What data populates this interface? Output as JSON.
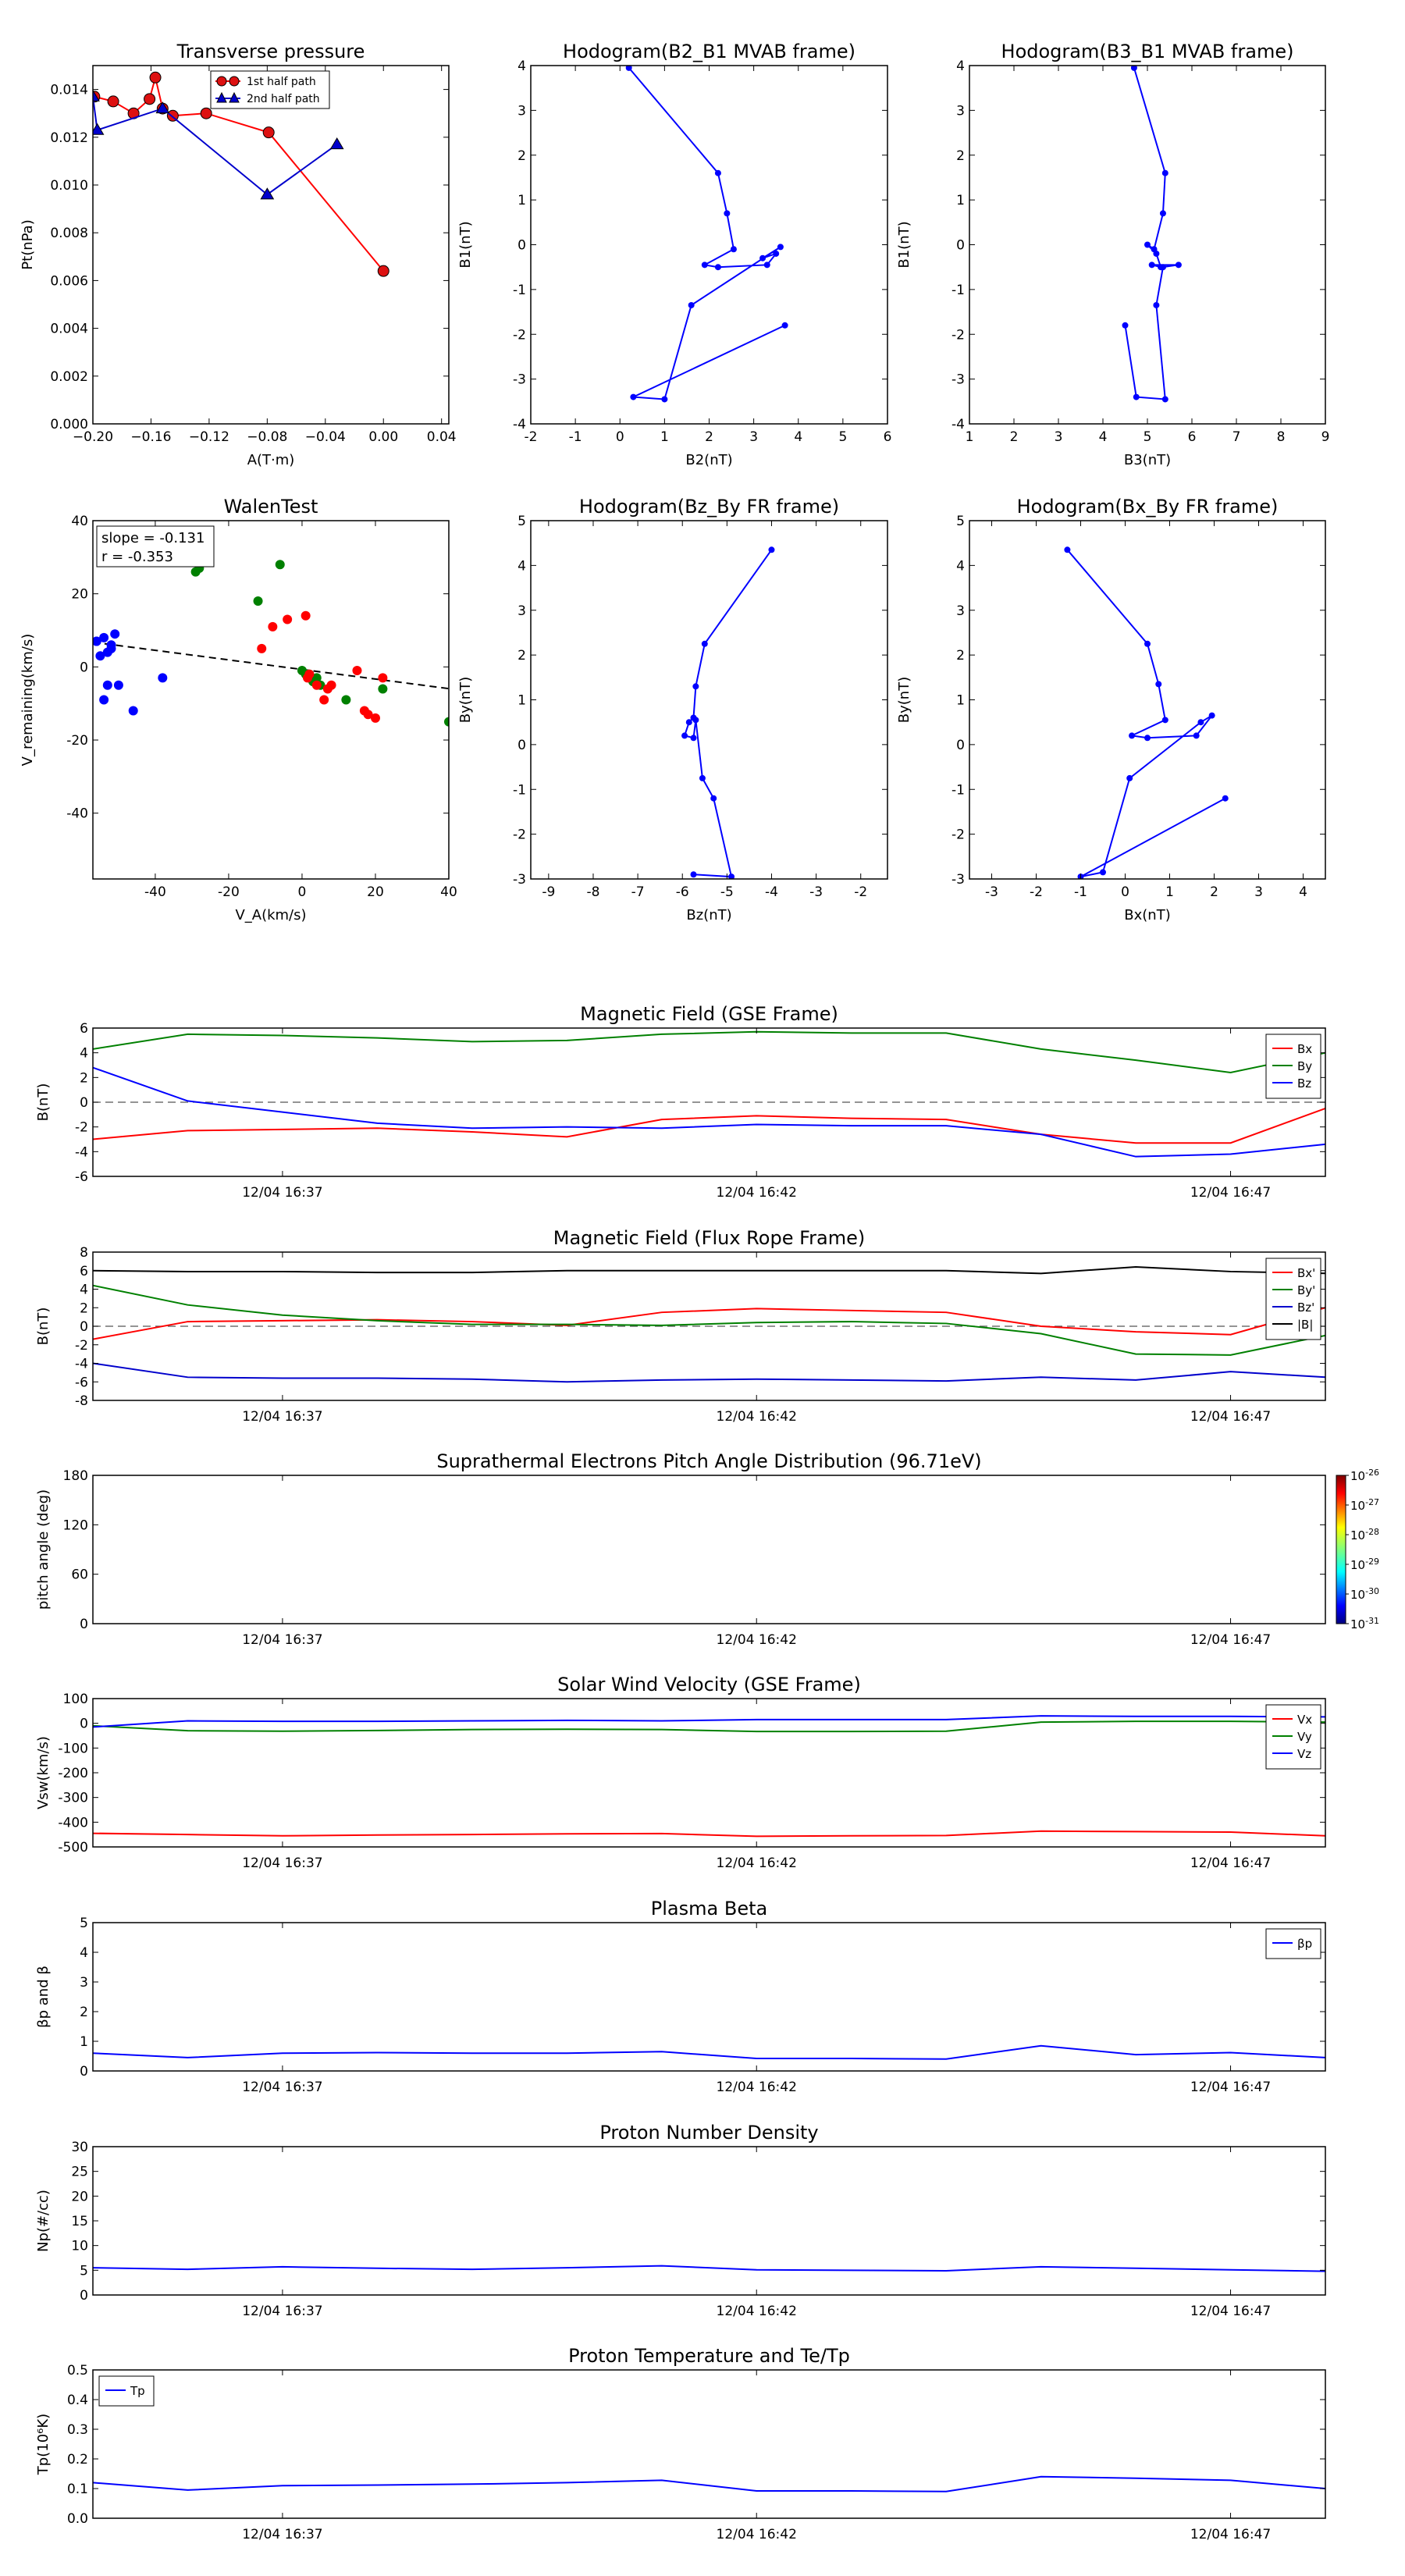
{
  "chart_data": [
    {
      "id": "tp",
      "type": "scatter",
      "title": "Transverse pressure",
      "xlabel": "A(T·m)",
      "ylabel": "Pt(nPa)",
      "xlim": [
        -0.2,
        0.045
      ],
      "ylim": [
        0,
        0.015
      ],
      "xticks": [
        -0.2,
        -0.16,
        -0.12,
        -0.08,
        -0.04,
        0.0,
        0.04
      ],
      "xtick_labels": [
        "−0.20",
        "−0.16",
        "−0.12",
        "−0.08",
        "−0.04",
        "0.00",
        "0.04"
      ],
      "yticks": [
        0,
        0.002,
        0.004,
        0.006,
        0.008,
        0.01,
        0.012,
        0.014
      ],
      "ytick_labels": [
        "0.000",
        "0.002",
        "0.004",
        "0.006",
        "0.008",
        "0.010",
        "0.012",
        "0.014"
      ],
      "legend_position": "top-center",
      "series": [
        {
          "name": "1st half path",
          "color": "#ff0000",
          "marker": "circle",
          "x": [
            -0.199,
            -0.186,
            -0.172,
            -0.161,
            -0.157,
            -0.152,
            -0.145,
            -0.122,
            -0.079,
            0.0
          ],
          "y": [
            0.0137,
            0.0135,
            0.013,
            0.0136,
            0.0145,
            0.0132,
            0.0129,
            0.013,
            0.0122,
            0.0064
          ]
        },
        {
          "name": "2nd half path",
          "color": "#0000cc",
          "marker": "triangle",
          "x": [
            -0.2,
            -0.197,
            -0.152,
            -0.08,
            -0.032
          ],
          "y": [
            0.0137,
            0.0123,
            0.0132,
            0.0096,
            0.0117
          ]
        }
      ]
    },
    {
      "id": "h1",
      "type": "line",
      "title": "Hodogram(B2_B1 MVAB frame)",
      "xlabel": "B2(nT)",
      "ylabel": "B1(nT)",
      "xlim": [
        -2,
        6
      ],
      "ylim": [
        -4,
        4
      ],
      "xticks": [
        -2,
        -1,
        0,
        1,
        2,
        3,
        4,
        5,
        6
      ],
      "yticks": [
        -4,
        -3,
        -2,
        -1,
        0,
        1,
        2,
        3,
        4
      ],
      "series": [
        {
          "color": "#0000ff",
          "x": [
            0.2,
            2.2,
            2.4,
            2.55,
            1.9,
            2.2,
            3.3,
            3.5,
            3.2,
            3.6,
            1.6,
            1.0,
            0.3,
            3.7
          ],
          "y": [
            3.95,
            1.6,
            0.7,
            -0.1,
            -0.45,
            -0.5,
            -0.45,
            -0.2,
            -0.3,
            -0.05,
            -1.35,
            -3.45,
            -3.4,
            -1.8
          ]
        }
      ]
    },
    {
      "id": "h2",
      "type": "line",
      "title": "Hodogram(B3_B1 MVAB frame)",
      "xlabel": "B3(nT)",
      "ylabel": "B1(nT)",
      "xlim": [
        1,
        9
      ],
      "ylim": [
        -4,
        4
      ],
      "xticks": [
        1,
        2,
        3,
        4,
        5,
        6,
        7,
        8,
        9
      ],
      "yticks": [
        -4,
        -3,
        -2,
        -1,
        0,
        1,
        2,
        3,
        4
      ],
      "series": [
        {
          "color": "#0000ff",
          "x": [
            4.7,
            5.4,
            5.35,
            5.15,
            5.0,
            5.2,
            5.3,
            5.1,
            5.7,
            5.35,
            5.2,
            5.4,
            4.75,
            4.5
          ],
          "y": [
            3.95,
            1.6,
            0.7,
            -0.1,
            0.0,
            -0.2,
            -0.5,
            -0.45,
            -0.45,
            -0.5,
            -1.35,
            -3.45,
            -3.4,
            -1.8
          ]
        }
      ]
    },
    {
      "id": "wt",
      "type": "scatter",
      "title": "WalenTest",
      "xlabel": "V_A(km/s)",
      "ylabel": "V_remaining(km/s)",
      "xlim": [
        -57,
        40
      ],
      "ylim": [
        -58,
        40
      ],
      "xticks": [
        -40,
        -20,
        0,
        20,
        40
      ],
      "yticks": [
        -40,
        -20,
        0,
        20,
        40
      ],
      "annotation_lines": [
        "slope = -0.131",
        "r = -0.353"
      ],
      "fit": {
        "slope": -0.131,
        "intercept": -0.7
      },
      "series": [
        {
          "color": "#0000ff",
          "x": [
            -56,
            -55,
            -54,
            -53,
            -52,
            -51,
            -53,
            -50,
            -52,
            -46,
            -38,
            -56,
            -54
          ],
          "y": [
            7,
            3,
            8,
            4,
            6,
            9,
            -5,
            -5,
            5,
            -12,
            -3,
            7,
            -9
          ]
        },
        {
          "color": "#008000",
          "x": [
            -29,
            -28,
            -6,
            -12,
            0,
            1,
            2,
            3,
            4,
            5,
            12,
            22,
            40
          ],
          "y": [
            26,
            27,
            28,
            18,
            -1,
            -2,
            -2,
            -4,
            -3,
            -5,
            -9,
            -6,
            -15
          ]
        },
        {
          "color": "#ff0000",
          "x": [
            -11,
            -8,
            -4,
            1,
            1.5,
            2,
            4,
            6,
            7,
            8,
            15,
            17,
            18,
            20,
            22
          ],
          "y": [
            5,
            11,
            13,
            14,
            -3,
            -2,
            -5,
            -9,
            -6,
            -5,
            -1,
            -12,
            -13,
            -14,
            -3
          ]
        }
      ]
    },
    {
      "id": "h3",
      "type": "line",
      "title": "Hodogram(Bz_By FR frame)",
      "xlabel": "Bz(nT)",
      "ylabel": "By(nT)",
      "xlim": [
        -9.4,
        -1.4
      ],
      "ylim": [
        -3,
        5
      ],
      "xticks": [
        -9,
        -8,
        -7,
        -6,
        -5,
        -4,
        -3,
        -2
      ],
      "yticks": [
        -3,
        -2,
        -1,
        0,
        1,
        2,
        3,
        4,
        5
      ],
      "series": [
        {
          "color": "#0000ff",
          "x": [
            -4.0,
            -5.5,
            -5.7,
            -5.75,
            -5.85,
            -5.95,
            -5.75,
            -5.7,
            -5.55,
            -5.3,
            -4.9,
            -5.75
          ],
          "y": [
            4.35,
            2.25,
            1.3,
            0.6,
            0.5,
            0.2,
            0.15,
            0.55,
            -0.75,
            -1.2,
            -2.95,
            -2.9
          ]
        }
      ]
    },
    {
      "id": "h4",
      "type": "line",
      "title": "Hodogram(Bx_By FR frame)",
      "xlabel": "Bx(nT)",
      "ylabel": "By(nT)",
      "xlim": [
        -3.5,
        4.5
      ],
      "ylim": [
        -3,
        5
      ],
      "xticks": [
        -3,
        -2,
        -1,
        0,
        1,
        2,
        3,
        4
      ],
      "yticks": [
        -3,
        -2,
        -1,
        0,
        1,
        2,
        3,
        4,
        5
      ],
      "series": [
        {
          "color": "#0000ff",
          "x": [
            -1.3,
            0.5,
            0.75,
            0.9,
            0.15,
            0.5,
            1.6,
            1.95,
            1.7,
            0.1,
            -0.5,
            -1.0,
            2.25
          ],
          "y": [
            4.35,
            2.25,
            1.35,
            0.55,
            0.2,
            0.15,
            0.2,
            0.65,
            0.5,
            -0.75,
            -2.85,
            -2.95,
            -1.2
          ]
        }
      ]
    },
    {
      "id": "mag_gse",
      "type": "line",
      "title": "Magnetic Field (GSE Frame)",
      "ylabel": "B(nT)",
      "ylim": [
        -6,
        6
      ],
      "yticks": [
        -6,
        -4,
        -2,
        0,
        2,
        4,
        6
      ],
      "dashed_zero": true,
      "x": [
        0,
        1,
        2,
        3,
        4,
        5,
        6,
        7,
        8,
        9,
        10,
        11,
        12,
        13
      ],
      "series": [
        {
          "name": "Bx",
          "color": "#ff0000",
          "values": [
            -3.0,
            -2.3,
            -2.2,
            -2.1,
            -2.4,
            -2.8,
            -1.4,
            -1.1,
            -1.3,
            -1.4,
            -2.6,
            -3.3,
            -3.3,
            -0.5
          ]
        },
        {
          "name": "By",
          "color": "#008000",
          "values": [
            4.3,
            5.5,
            5.4,
            5.2,
            4.9,
            5.0,
            5.5,
            5.7,
            5.6,
            5.6,
            4.3,
            3.4,
            2.4,
            4.0
          ]
        },
        {
          "name": "Bz",
          "color": "#0000ff",
          "values": [
            2.8,
            0.1,
            -0.8,
            -1.7,
            -2.1,
            -2.0,
            -2.1,
            -1.8,
            -1.9,
            -1.9,
            -2.6,
            -4.4,
            -4.2,
            -3.4
          ]
        }
      ],
      "legend_position": "top-right"
    },
    {
      "id": "mag_fr",
      "type": "line",
      "title": "Magnetic Field (Flux Rope Frame)",
      "ylabel": "B(nT)",
      "ylim": [
        -8,
        8
      ],
      "yticks": [
        -8,
        -6,
        -4,
        -2,
        0,
        2,
        4,
        6,
        8
      ],
      "dashed_zero": true,
      "x": [
        0,
        1,
        2,
        3,
        4,
        5,
        6,
        7,
        8,
        9,
        10,
        11,
        12,
        13
      ],
      "series": [
        {
          "name": "Bx'",
          "color": "#ff0000",
          "values": [
            -1.4,
            0.5,
            0.6,
            0.7,
            0.5,
            0.1,
            1.5,
            1.9,
            1.7,
            1.5,
            0.0,
            -0.6,
            -0.9,
            2.0
          ]
        },
        {
          "name": "By'",
          "color": "#008000",
          "values": [
            4.4,
            2.3,
            1.2,
            0.6,
            0.2,
            0.2,
            0.1,
            0.4,
            0.5,
            0.3,
            -0.8,
            -3.0,
            -3.1,
            -1.0
          ]
        },
        {
          "name": "Bz'",
          "color": "#0000cc",
          "values": [
            -4.0,
            -5.5,
            -5.6,
            -5.6,
            -5.7,
            -6.0,
            -5.8,
            -5.7,
            -5.8,
            -5.9,
            -5.5,
            -5.8,
            -4.9,
            -5.5
          ]
        },
        {
          "name": "|B|",
          "color": "#000000",
          "values": [
            6.0,
            5.9,
            5.9,
            5.8,
            5.8,
            6.0,
            6.0,
            6.0,
            6.0,
            6.0,
            5.7,
            6.4,
            5.9,
            5.7
          ]
        }
      ],
      "legend_position": "top-right"
    },
    {
      "id": "pad",
      "type": "heatmap",
      "title": "Suprathermal Electrons Pitch Angle Distribution (96.71eV)",
      "ylabel": "pitch angle (deg)",
      "ylim": [
        0,
        180
      ],
      "yticks": [
        0,
        60,
        120,
        180
      ],
      "colorbar_ticks": [
        "-26",
        "-27",
        "-28",
        "-29",
        "-30",
        "-31"
      ],
      "colorbar_base": "10"
    },
    {
      "id": "vsw",
      "type": "line",
      "title": "Solar Wind Velocity (GSE Frame)",
      "ylabel": "Vsw(km/s)",
      "ylim": [
        -500,
        100
      ],
      "yticks": [
        -500,
        -400,
        -300,
        -200,
        -100,
        0,
        100
      ],
      "x": [
        0,
        1,
        2,
        3,
        4,
        5,
        6,
        7,
        8,
        9,
        10,
        11,
        12,
        13
      ],
      "series": [
        {
          "name": "Vx",
          "color": "#ff0000",
          "values": [
            -445,
            -450,
            -455,
            -452,
            -450,
            -447,
            -446,
            -457,
            -455,
            -454,
            -436,
            -438,
            -440,
            -455
          ]
        },
        {
          "name": "Vy",
          "color": "#008000",
          "values": [
            -10,
            -30,
            -32,
            -29,
            -25,
            -24,
            -25,
            -33,
            -33,
            -32,
            5,
            8,
            8,
            5
          ]
        },
        {
          "name": "Vz",
          "color": "#0000ff",
          "values": [
            -15,
            10,
            8,
            8,
            10,
            12,
            10,
            15,
            15,
            15,
            30,
            28,
            28,
            26
          ]
        }
      ],
      "legend_position": "top-right"
    },
    {
      "id": "beta",
      "type": "line",
      "title": "Plasma Beta",
      "ylabel": "βp and β",
      "ylim": [
        0,
        5
      ],
      "yticks": [
        0,
        1,
        2,
        3,
        4,
        5
      ],
      "x": [
        0,
        1,
        2,
        3,
        4,
        5,
        6,
        7,
        8,
        9,
        10,
        11,
        12,
        13
      ],
      "series": [
        {
          "name": "βp",
          "color": "#0000ff",
          "values": [
            0.6,
            0.45,
            0.6,
            0.62,
            0.6,
            0.6,
            0.65,
            0.42,
            0.42,
            0.4,
            0.85,
            0.55,
            0.62,
            0.45
          ]
        }
      ],
      "legend_position": "top-right"
    },
    {
      "id": "np",
      "type": "line",
      "title": "Proton Number Density",
      "ylabel": "Np(#/cc)",
      "ylim": [
        0,
        30
      ],
      "yticks": [
        0,
        5,
        10,
        15,
        20,
        25,
        30
      ],
      "x": [
        0,
        1,
        2,
        3,
        4,
        5,
        6,
        7,
        8,
        9,
        10,
        11,
        12,
        13
      ],
      "series": [
        {
          "color": "#0000ff",
          "values": [
            5.5,
            5.2,
            5.7,
            5.4,
            5.2,
            5.5,
            5.9,
            5.1,
            5.0,
            4.9,
            5.7,
            5.4,
            5.1,
            4.8
          ]
        }
      ]
    },
    {
      "id": "tp2",
      "type": "line",
      "title": "Proton Temperature and Te/Tp",
      "ylabel": "Tp(10⁶K)",
      "ylim": [
        0,
        0.5
      ],
      "yticks": [
        0,
        0.1,
        0.2,
        0.3,
        0.4,
        0.5
      ],
      "ytick_labels": [
        "0.0",
        "0.1",
        "0.2",
        "0.3",
        "0.4",
        "0.5"
      ],
      "x": [
        0,
        1,
        2,
        3,
        4,
        5,
        6,
        7,
        8,
        9,
        10,
        11,
        12,
        13
      ],
      "series": [
        {
          "name": "Tp",
          "color": "#0000ff",
          "values": [
            0.12,
            0.095,
            0.11,
            0.112,
            0.115,
            0.12,
            0.128,
            0.092,
            0.092,
            0.09,
            0.14,
            0.135,
            0.128,
            0.1
          ]
        }
      ],
      "legend_position": "top-left"
    }
  ],
  "time_axis": {
    "xlim": [
      0,
      13
    ],
    "ticks": [
      2,
      7,
      12
    ],
    "labels": [
      "12/04 16:37",
      "12/04 16:42",
      "12/04 16:47"
    ]
  }
}
